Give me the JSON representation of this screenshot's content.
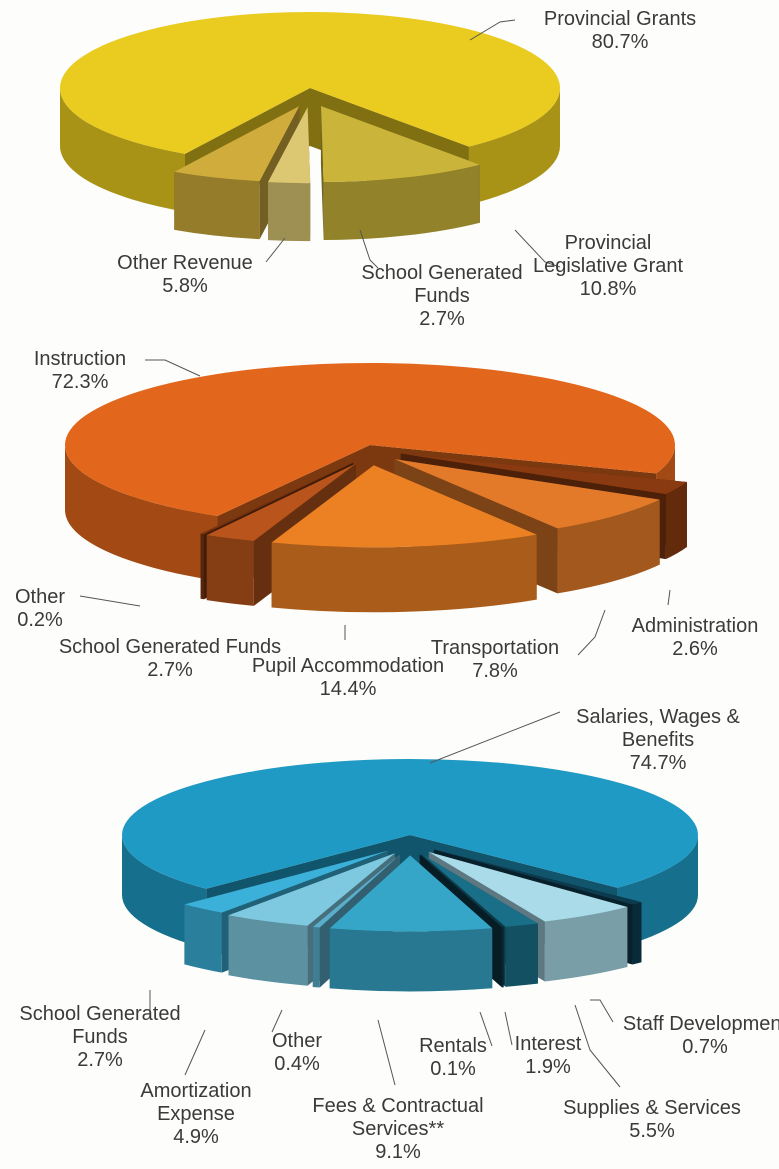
{
  "chart_data": [
    {
      "type": "pie3d",
      "categories": [
        "Provincial Grants",
        "Provincial Legislative Grant",
        "School Generated Funds",
        "Other Revenue"
      ],
      "values": [
        80.7,
        10.8,
        2.7,
        5.8
      ],
      "value_labels": [
        "80.7%",
        "10.8%",
        "2.7%",
        "5.8%"
      ],
      "colors": [
        "#e9cc1f",
        "#cbb43a",
        "#dcc873",
        "#cfac3c"
      ]
    },
    {
      "type": "pie3d",
      "categories": [
        "Instruction",
        "Administration",
        "Transportation",
        "Pupil Accommodation",
        "School Generated Funds",
        "Other"
      ],
      "values": [
        72.3,
        2.6,
        7.8,
        14.4,
        2.7,
        0.2
      ],
      "value_labels": [
        "72.3%",
        "2.6%",
        "7.8%",
        "14.4%",
        "2.7%",
        "0.2%"
      ],
      "colors": [
        "#e2671c",
        "#8a3a10",
        "#e27a2a",
        "#ec8124",
        "#b9551c",
        "#7a3310"
      ]
    },
    {
      "type": "pie3d",
      "categories": [
        "Salaries, Wages & Benefits",
        "Staff Development",
        "Supplies & Services",
        "Interest",
        "Rentals",
        "Fees & Contractual Services**",
        "Other",
        "Amortization Expense",
        "School Generated Funds"
      ],
      "values": [
        74.7,
        0.7,
        5.5,
        1.9,
        0.1,
        9.1,
        0.4,
        4.9,
        2.7
      ],
      "value_labels": [
        "74.7%",
        "0.7%",
        "5.5%",
        "1.9%",
        "0.1%",
        "9.1%",
        "0.4%",
        "4.9%",
        "2.7%"
      ],
      "colors": [
        "#1f9ac4",
        "#0d3b4e",
        "#a9dbe9",
        "#1a6f88",
        "#0b3444",
        "#36a6c8",
        "#5aaecc",
        "#7fc9e0",
        "#3bb0d8"
      ]
    }
  ]
}
